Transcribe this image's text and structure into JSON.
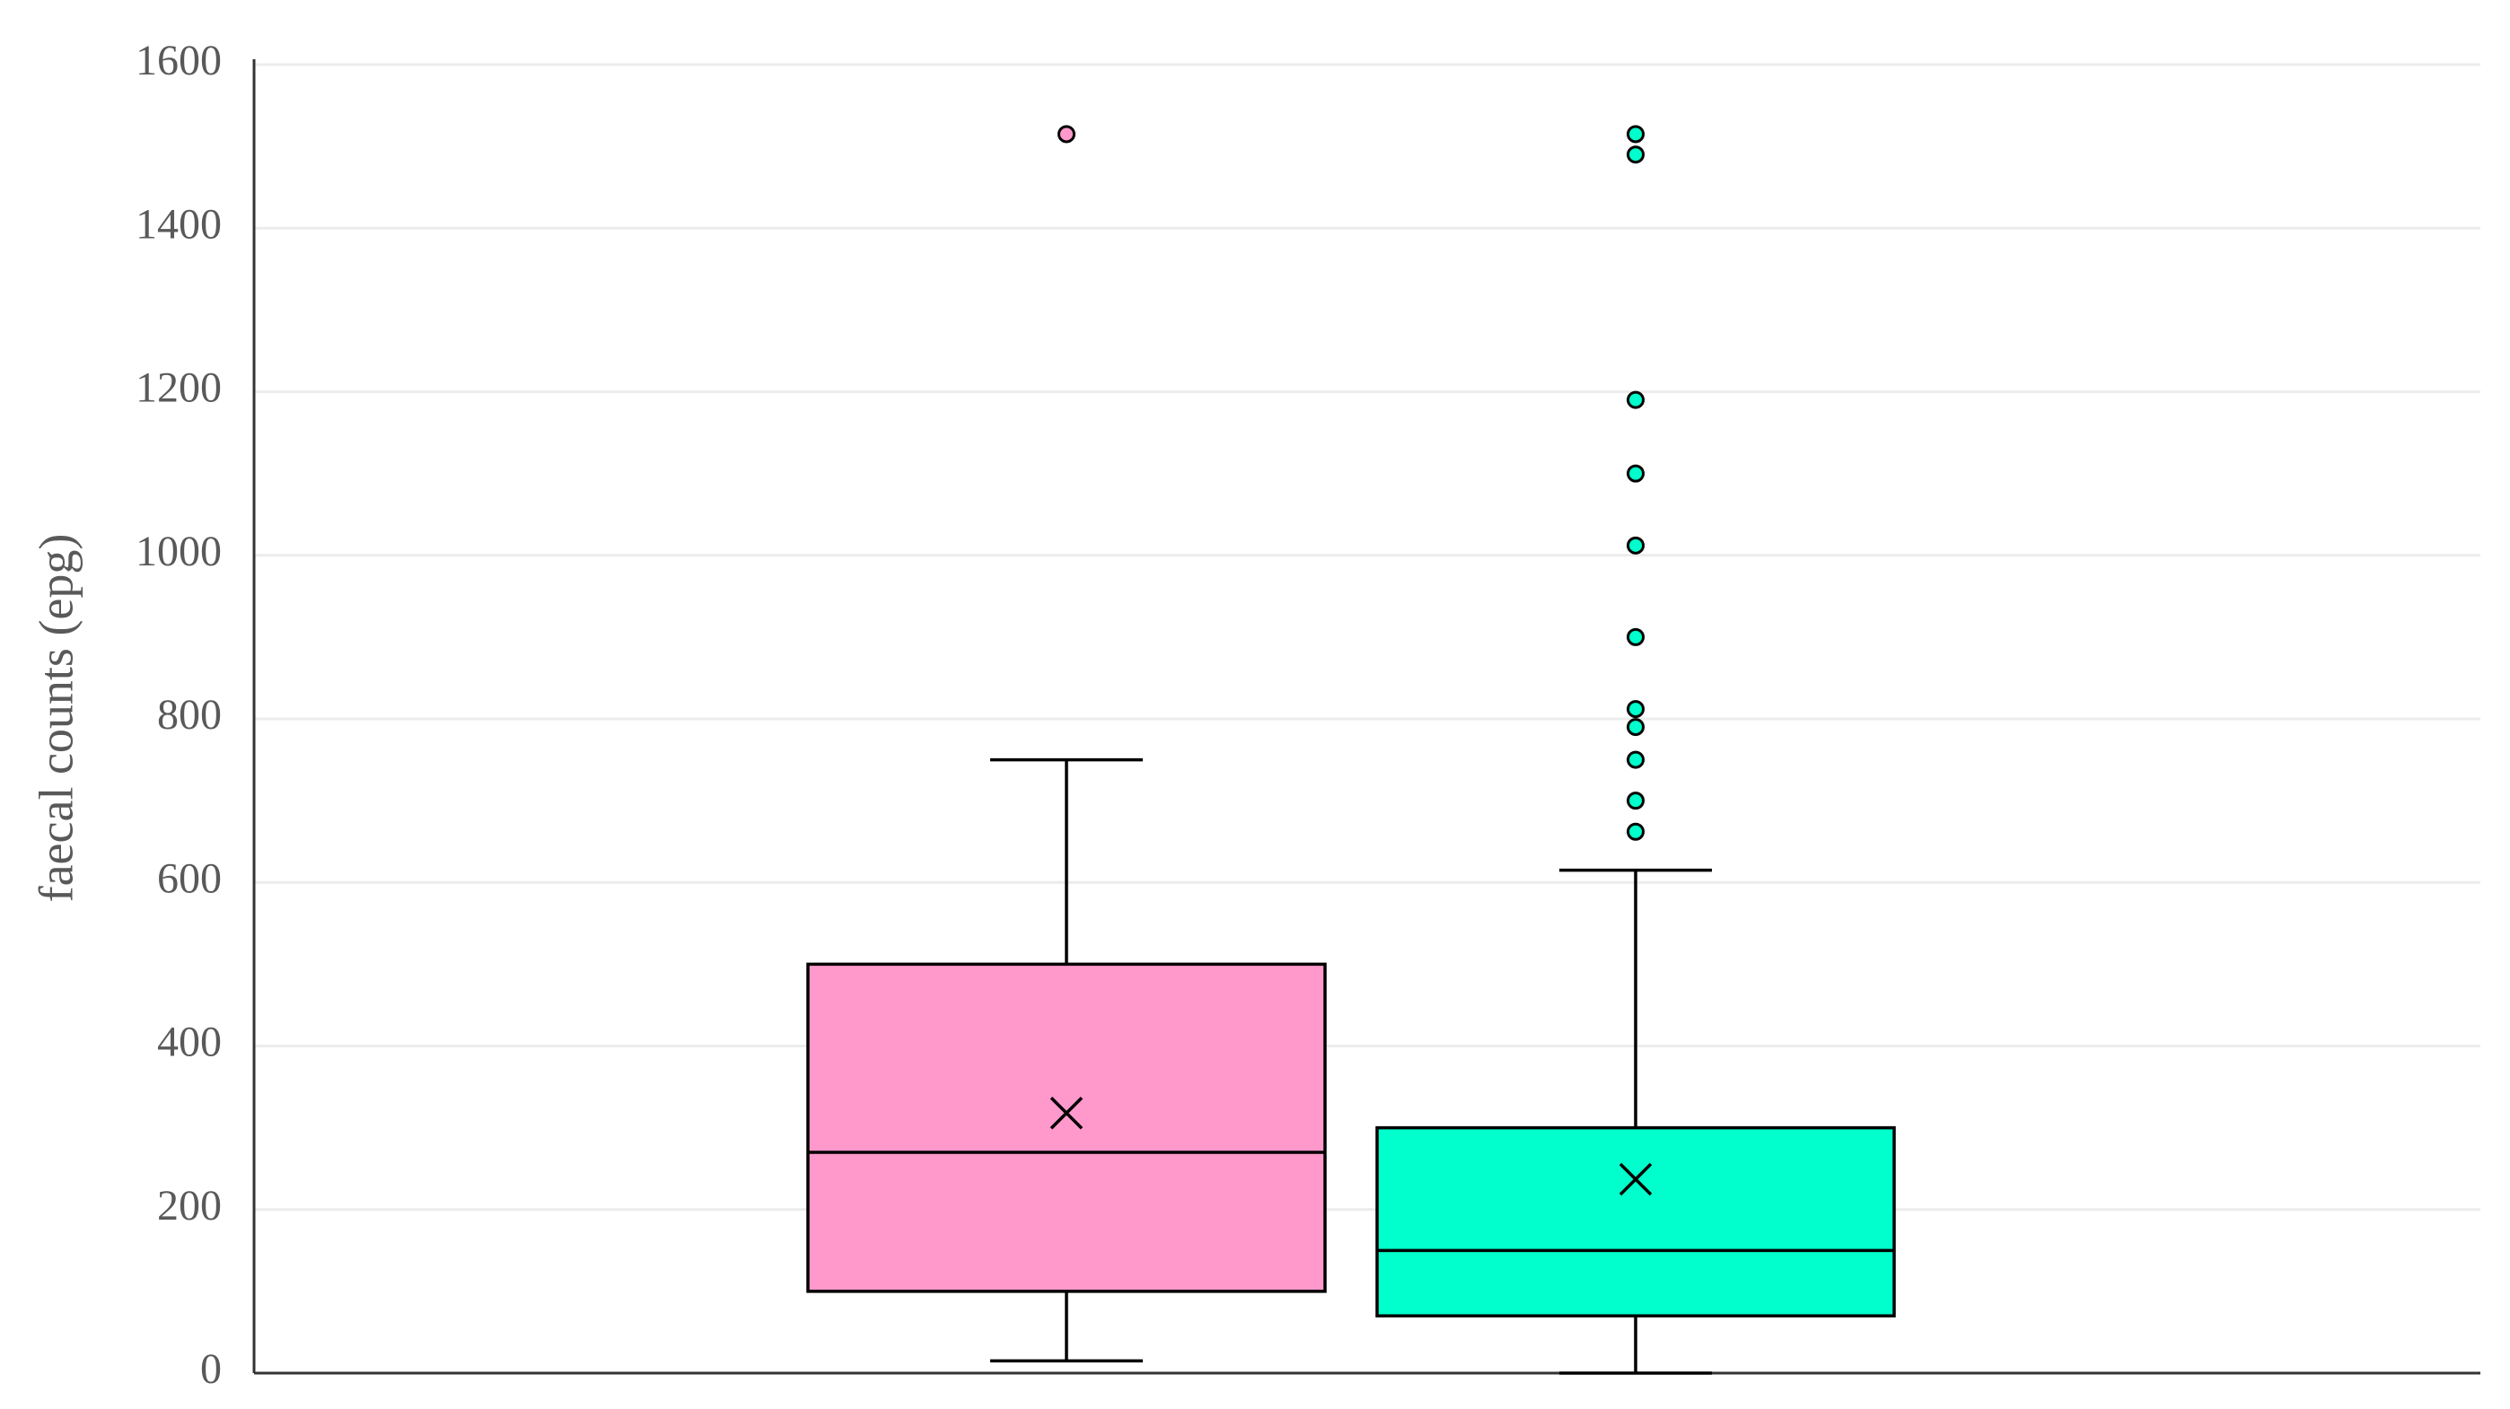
{
  "chart_data": {
    "type": "box",
    "y_label": "faecal counts (epg)",
    "ylim": [
      0,
      1600
    ],
    "yticks": [
      0,
      200,
      400,
      600,
      800,
      1000,
      1200,
      1400,
      1600
    ],
    "grid": true,
    "series": [
      {
        "color": "#ff99cc",
        "min": 15,
        "q1": 100,
        "median": 270,
        "q3": 500,
        "max": 750,
        "mean": 318,
        "outliers": [
          1515
        ]
      },
      {
        "color": "#00ffcc",
        "min": 0,
        "q1": 70,
        "median": 150,
        "q3": 300,
        "max": 615,
        "mean": 237,
        "outliers": [
          1515,
          1490,
          1190,
          1100,
          1012,
          900,
          812,
          790,
          750,
          700,
          662
        ]
      }
    ]
  }
}
